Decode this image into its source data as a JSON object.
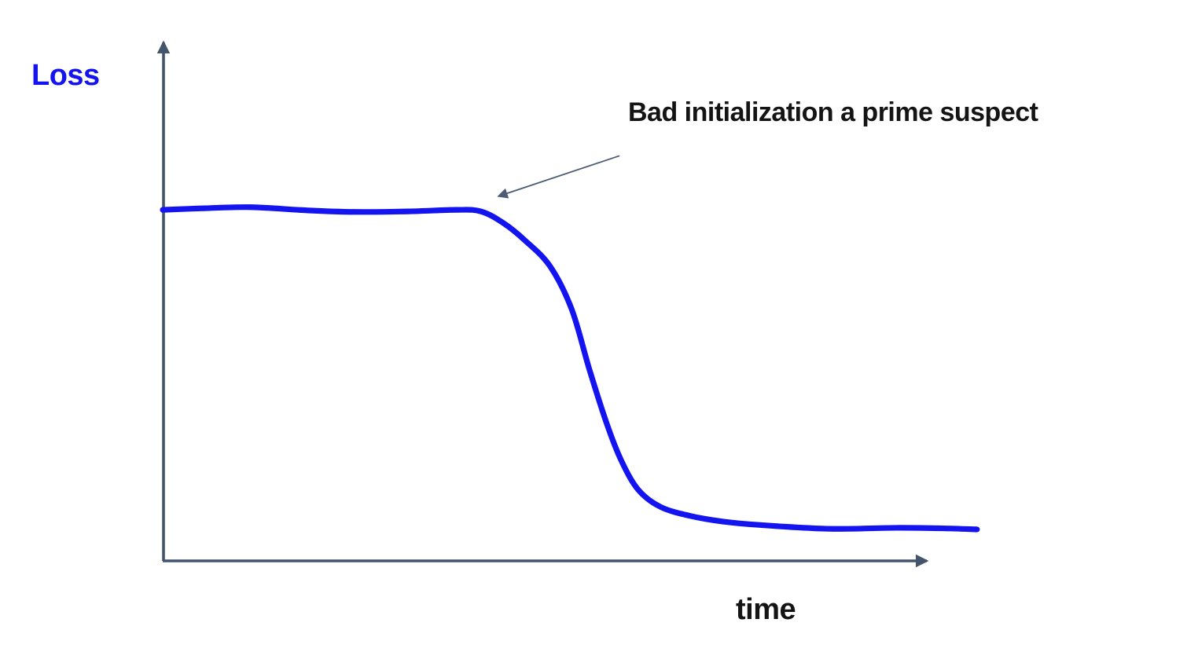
{
  "chart_data": {
    "type": "line",
    "title": "",
    "ylabel": "Loss",
    "xlabel": "time",
    "axes": {
      "tick_labels": false,
      "grid": false,
      "x_range": "unlabeled (schematic time axis with arrowhead)",
      "y_range": "unlabeled (schematic loss axis with arrowhead)"
    },
    "legend": false,
    "colors": {
      "curve": "#1414f0",
      "axis": "#44546a",
      "annotation_arrow": "#4e5d73",
      "ylabel_text": "#1414f0",
      "text": "#141414"
    },
    "series": [
      {
        "name": "loss",
        "x": [
          0,
          5.4,
          11.5,
          18.7,
          24.8,
          31.9,
          38.1,
          41.3,
          44.2,
          47.0,
          50.3,
          53.1,
          55.4,
          57.7,
          59.5,
          61.7,
          64.6,
          68.7,
          73.8,
          79.9,
          87.0,
          95.2,
          101.3,
          105.7
        ],
        "y": [
          66.9,
          67.2,
          67.4,
          66.8,
          66.5,
          66.6,
          66.9,
          66.6,
          64.4,
          61.1,
          56.1,
          47.9,
          36.4,
          25.9,
          19.2,
          13.6,
          10.3,
          8.5,
          7.3,
          6.6,
          6.1,
          6.3,
          6.2,
          6.0
        ],
        "shape": "flat high plateau, then sigmoid drop to low plateau"
      }
    ],
    "annotations": [
      {
        "text": "Bad initialization a prime suspect",
        "arrow_from": {
          "x": 59.3,
          "y": 77.2
        },
        "arrow_to": {
          "x": 43.6,
          "y": 69.5
        }
      }
    ]
  }
}
